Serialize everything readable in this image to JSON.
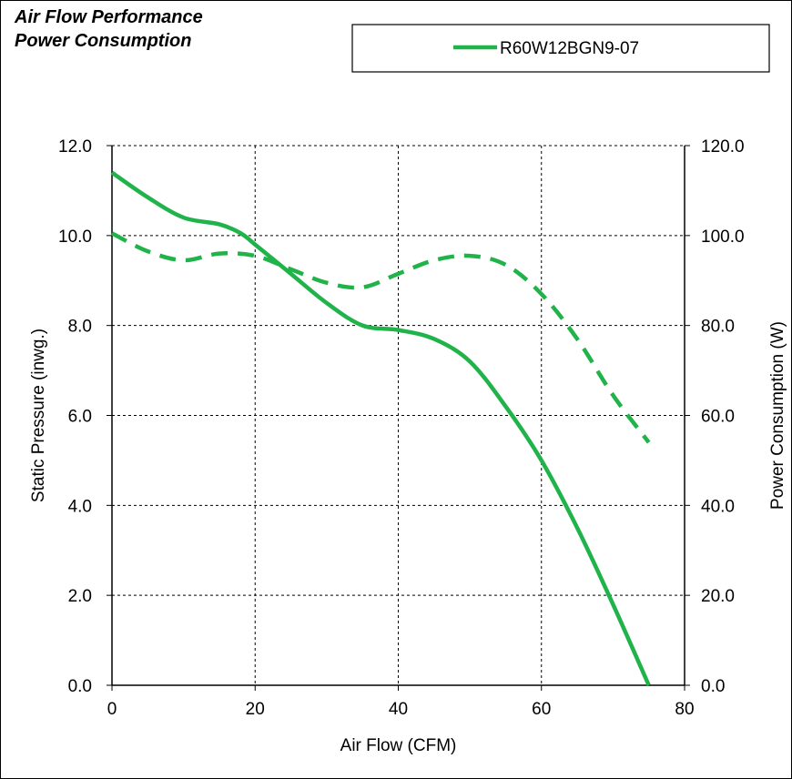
{
  "chart_data": {
    "type": "line",
    "title": "Air Flow Performance",
    "subtitle": "Power Consumption",
    "xlabel": "Air Flow (CFM)",
    "ylabel": "Static Pressure (inwg.)",
    "y2label": "Power Consumption (W)",
    "xlim": [
      0,
      80
    ],
    "ylim": [
      0,
      12
    ],
    "y2lim": [
      0,
      120
    ],
    "x_ticks": [
      "0",
      "20",
      "40",
      "60",
      "80"
    ],
    "y_ticks": [
      "0.0",
      "2.0",
      "4.0",
      "6.0",
      "8.0",
      "10.0",
      "12.0"
    ],
    "y2_ticks": [
      "0.0",
      "20.0",
      "40.0",
      "60.0",
      "80.0",
      "100.0",
      "120.0"
    ],
    "grid": true,
    "legend": {
      "position": "top-right",
      "entries": [
        "R60W12BGN9-07"
      ]
    },
    "color": "#1fb34a",
    "series": [
      {
        "name": "R60W12BGN9-07",
        "axis": "left",
        "style": "solid",
        "x": [
          0,
          5,
          10,
          15,
          18,
          20,
          25,
          30,
          35,
          40,
          45,
          50,
          55,
          60,
          65,
          70,
          75
        ],
        "y": [
          11.4,
          10.85,
          10.4,
          10.25,
          10.05,
          9.8,
          9.15,
          8.5,
          8.0,
          7.9,
          7.7,
          7.2,
          6.2,
          5.0,
          3.5,
          1.8,
          0.0
        ]
      },
      {
        "name": "R60W12BGN9-07",
        "axis": "right",
        "style": "dashed",
        "x": [
          0,
          5,
          10,
          15,
          20,
          25,
          30,
          35,
          40,
          45,
          50,
          55,
          60,
          65,
          70,
          75
        ],
        "y": [
          100.5,
          96.5,
          94.5,
          96.0,
          95.5,
          92.5,
          89.5,
          88.5,
          91.5,
          94.5,
          95.5,
          93.5,
          87.0,
          77.0,
          64.5,
          54.0
        ]
      }
    ]
  }
}
